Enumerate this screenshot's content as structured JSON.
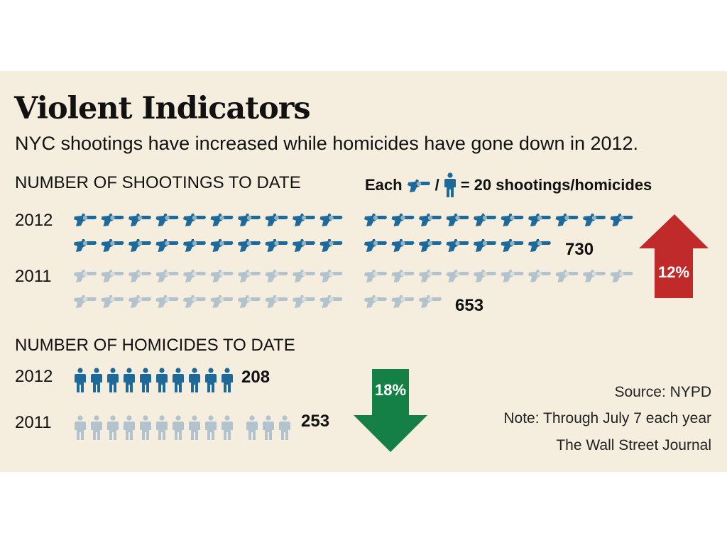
{
  "title": "Violent Indicators",
  "subtitle": "NYC shootings have increased while homicides have gone down in 2012.",
  "legend": {
    "each_label": "Each",
    "separator": "/",
    "unit_label": "= 20 shootings/homicides",
    "gun_icon": "revolver-icon",
    "person_icon": "person-icon"
  },
  "notes": {
    "source": "Source: NYPD",
    "note": "Note: Through July 7 each year",
    "publisher": "The Wall Street Journal"
  },
  "colors": {
    "current_year": "#1d6a9a",
    "prior_year": "#b3c3cd",
    "increase_arrow": "#c02a2a",
    "decrease_arrow": "#148046",
    "background": "#f5eedf"
  },
  "chart_data": [
    {
      "type": "bar",
      "title": "NUMBER OF SHOOTINGS TO DATE",
      "unit_per_icon": 20,
      "icon": "revolver-icon",
      "categories": [
        "2012",
        "2011"
      ],
      "values": [
        730,
        653
      ],
      "value_labels": [
        "730",
        "653"
      ],
      "change": {
        "label": "12%",
        "direction": "up"
      }
    },
    {
      "type": "bar",
      "title": "NUMBER OF HOMICIDES TO DATE",
      "unit_per_icon": 20,
      "icon": "person-icon",
      "categories": [
        "2012",
        "2011"
      ],
      "values": [
        208,
        253
      ],
      "value_labels": [
        "208",
        "253"
      ],
      "change": {
        "label": "18%",
        "direction": "down"
      }
    }
  ]
}
